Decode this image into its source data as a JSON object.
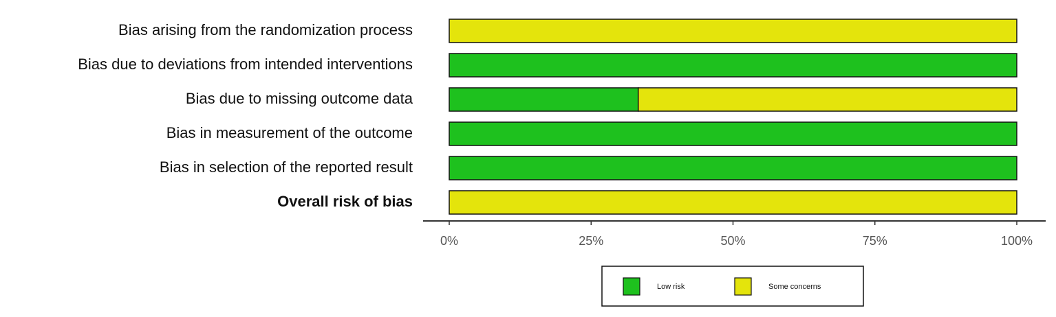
{
  "chart_data": {
    "type": "stacked-barh",
    "categories": [
      "Bias arising from the randomization process",
      "Bias due to deviations from intended interventions",
      "Bias due to missing outcome data",
      "Bias in measurement of the outcome",
      "Bias in selection of the reported result",
      "Overall risk of bias"
    ],
    "series": [
      {
        "name": "Low risk",
        "color": "#1ec11e",
        "values": [
          0,
          100,
          33.3,
          100,
          100,
          0
        ]
      },
      {
        "name": "Some concerns",
        "color": "#e4e40c",
        "values": [
          100,
          0,
          66.7,
          0,
          0,
          100
        ]
      }
    ],
    "xlim": [
      0,
      100
    ],
    "xticks": [
      {
        "value": 0,
        "label": "0%"
      },
      {
        "value": 25,
        "label": "25%"
      },
      {
        "value": 50,
        "label": "50%"
      },
      {
        "value": 75,
        "label": "75%"
      },
      {
        "value": 100,
        "label": "100%"
      }
    ],
    "legend": "bottom"
  }
}
